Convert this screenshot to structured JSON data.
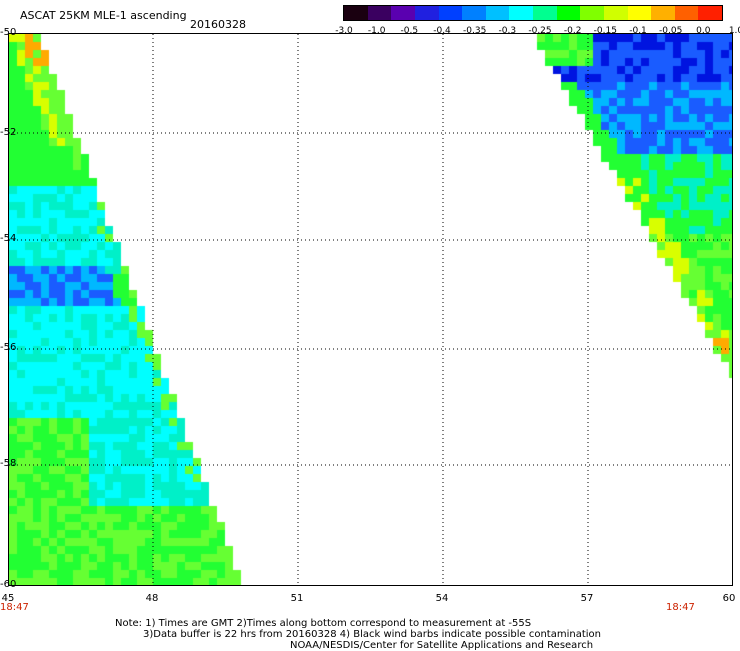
{
  "header": {
    "title": "ASCAT 25KM MLE-1 ascending",
    "date": "20160328"
  },
  "colorbar": {
    "labels": [
      "-3.0",
      "-1.0",
      "-0.5",
      "-0.4",
      "-0.35",
      "-0.3",
      "-0.25",
      "-0.2",
      "-0.15",
      "-0.1",
      "-0.05",
      "0.0",
      "1.0"
    ],
    "colors": [
      "#1a0010",
      "#3a0060",
      "#5a00b0",
      "#2020e0",
      "#0040ff",
      "#0080ff",
      "#00c0ff",
      "#00ffff",
      "#00ff90",
      "#00ff00",
      "#80ff00",
      "#d0ff00",
      "#ffff00",
      "#ffb000",
      "#ff6000",
      "#ff2000"
    ]
  },
  "map": {
    "x_ticks": [
      "45",
      "48",
      "51",
      "54",
      "57",
      "60"
    ],
    "y_ticks": [
      "-50",
      "-52",
      "-54",
      "-56",
      "-58",
      "-60"
    ],
    "time_left": "18:47",
    "time_right": "18:47",
    "swath_colors": {
      "blue": "#1a5cff",
      "lightblue": "#00b8ff",
      "cyan": "#00ffff",
      "aqua": "#00f0c8",
      "green": "#22ff33",
      "lightgreen": "#66ff33",
      "yellow": "#d8ff00",
      "orange": "#ffaa00",
      "deepblue": "#0014e0"
    }
  },
  "notes": {
    "line1": "Note: 1) Times are GMT 2)Times along bottom correspond to measurement at -55S",
    "line2": "3)Data buffer is 22 hrs from 20160328 4) Black wind barbs indicate possible contamination",
    "line3": "NOAA/NESDIS/Center for Satellite Applications and Research"
  }
}
